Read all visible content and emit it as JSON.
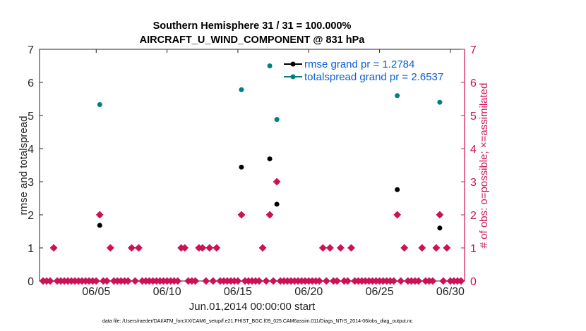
{
  "chart_data": {
    "type": "scatter",
    "title_line1": "Southern Hemisphere 31 / 31 = 100.000%",
    "title_line2": "AIRCRAFT_U_WIND_COMPONENT @ 831 hPa",
    "xlabel": "Jun.01,2014 00:00:00 start",
    "ylabel": "rmse and totalspread",
    "ylabel_right": "# of obs: o=possible; ×=assimilated",
    "x_unit": "days since Jun.01,2014 00:00",
    "xlim": [
      0,
      30
    ],
    "ylim": [
      0,
      7
    ],
    "ylim_right": [
      0,
      7
    ],
    "x_ticks": [
      {
        "x": 4,
        "label": "06/05"
      },
      {
        "x": 9,
        "label": "06/10"
      },
      {
        "x": 14,
        "label": "06/15"
      },
      {
        "x": 19,
        "label": "06/20"
      },
      {
        "x": 24,
        "label": "06/25"
      },
      {
        "x": 29,
        "label": "06/30"
      }
    ],
    "y_ticks": [
      "0",
      "1",
      "2",
      "3",
      "4",
      "5",
      "6",
      "7"
    ],
    "y_ticks_right": [
      "0",
      "1",
      "2",
      "3",
      "4",
      "5",
      "6",
      "7"
    ],
    "legend": {
      "placement": "top-right",
      "entries": [
        "rmse grand pr = 1.2784",
        "totalspread grand pr = 2.6537"
      ]
    },
    "colors": {
      "rmse": "#000000",
      "totalspread": "#007f7f",
      "obs": "#cc1155",
      "legend_text": "#0b5ed7"
    },
    "series": [
      {
        "name": "rmse",
        "points": [
          [
            4.25,
            1.68
          ],
          [
            14.25,
            3.44
          ],
          [
            16.25,
            3.69
          ],
          [
            16.75,
            2.32
          ],
          [
            25.25,
            2.76
          ],
          [
            28.25,
            1.6
          ]
        ]
      },
      {
        "name": "totalspread",
        "points": [
          [
            4.25,
            5.33
          ],
          [
            14.25,
            5.78
          ],
          [
            16.25,
            6.5
          ],
          [
            16.75,
            4.88
          ],
          [
            25.25,
            5.6
          ],
          [
            28.25,
            5.4
          ]
        ]
      },
      {
        "name": "obs_count",
        "start": 0.25,
        "step": 0.25,
        "nonzero": {
          "1.0": 1,
          "4.25": 2,
          "5.0": 1,
          "6.5": 1,
          "7.0": 1,
          "10.0": 1,
          "10.25": 1,
          "11.25": 1,
          "11.5": 1,
          "12.0": 1,
          "12.5": 1,
          "14.25": 2,
          "15.75": 1,
          "16.25": 2,
          "16.75": 3,
          "20.0": 1,
          "20.5": 1,
          "21.25": 1,
          "22.0": 1,
          "25.25": 2,
          "25.75": 1,
          "27.0": 1,
          "28.0": 1,
          "28.25": 2,
          "28.75": 1
        },
        "end": 29.75
      }
    ]
  },
  "footer": "data file: /Users/raeder/DAI/ATM_forcXX/CAM6_setup/f.e21.FHIST_BGC.f09_025.CAM6assim.011/Diags_NTrS_2014-06/obs_diag_output.nc"
}
